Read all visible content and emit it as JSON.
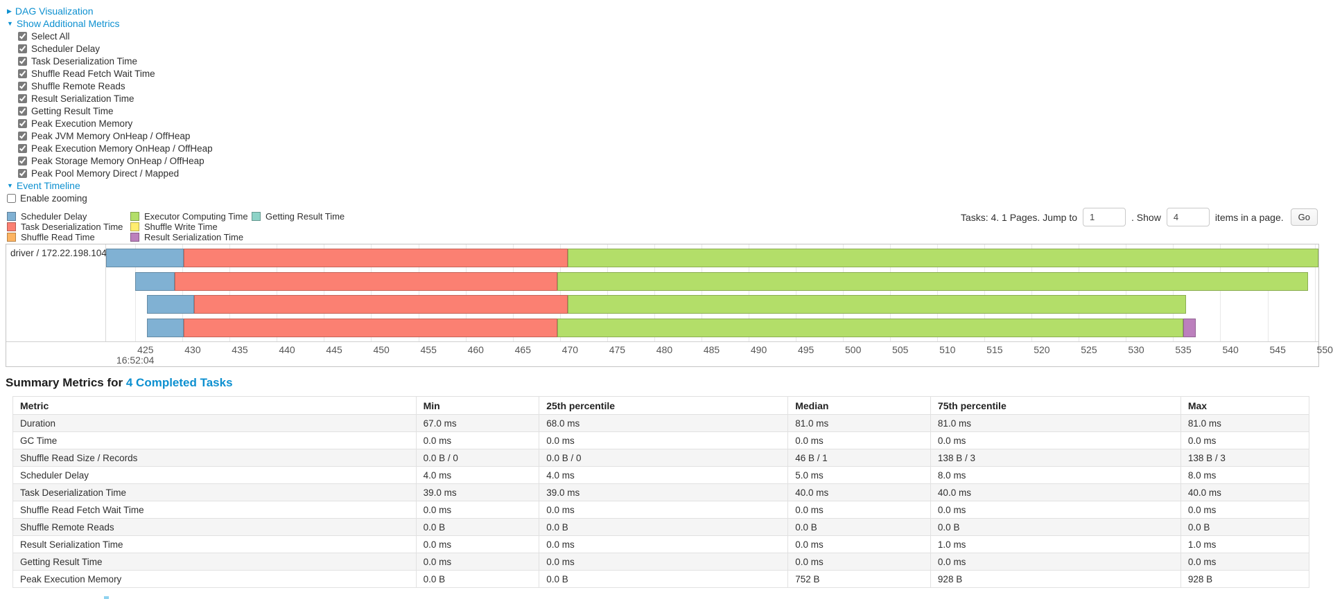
{
  "controls": {
    "dag_visualization": "DAG Visualization",
    "show_additional_metrics": "Show Additional Metrics",
    "metric_checkboxes": [
      "Select All",
      "Scheduler Delay",
      "Task Deserialization Time",
      "Shuffle Read Fetch Wait Time",
      "Shuffle Remote Reads",
      "Result Serialization Time",
      "Getting Result Time",
      "Peak Execution Memory",
      "Peak JVM Memory OnHeap / OffHeap",
      "Peak Execution Memory OnHeap / OffHeap",
      "Peak Storage Memory OnHeap / OffHeap",
      "Peak Pool Memory Direct / Mapped"
    ],
    "metric_checkboxes_checked": true,
    "event_timeline": "Event Timeline",
    "enable_zooming": "Enable zooming",
    "enable_zooming_checked": false
  },
  "legend": {
    "columns": [
      [
        {
          "label": "Scheduler Delay",
          "color": "#80B1D3"
        },
        {
          "label": "Task Deserialization Time",
          "color": "#FB8072"
        },
        {
          "label": "Shuffle Read Time",
          "color": "#FDB462"
        }
      ],
      [
        {
          "label": "Executor Computing Time",
          "color": "#B3DE69"
        },
        {
          "label": "Shuffle Write Time",
          "color": "#FFED6F"
        },
        {
          "label": "Result Serialization Time",
          "color": "#BC80BD"
        }
      ],
      [
        {
          "label": "Getting Result Time",
          "color": "#8DD3C7"
        }
      ]
    ]
  },
  "pagination": {
    "text_before": "Tasks: 4. 1 Pages. Jump to",
    "jump_value": "1",
    "text_mid": ". Show",
    "show_value": "4",
    "text_after": "items in a page.",
    "go_label": "Go"
  },
  "chart_data": {
    "type": "timeline",
    "group_label": "driver / 172.22.198.104",
    "axis": {
      "min": 421.9,
      "max": 550.4,
      "tick_start": 425,
      "tick_step": 5,
      "tick_end": 550,
      "first_tick_time_label": "16:52:04"
    },
    "tasks": [
      {
        "segments": [
          {
            "name": "scheduler-delay",
            "start": 421.9,
            "end": 430.1,
            "color": "#80B1D3"
          },
          {
            "name": "task-deserialization",
            "start": 430.1,
            "end": 470.8,
            "color": "#FB8072"
          },
          {
            "name": "executor-computing",
            "start": 470.8,
            "end": 550.4,
            "color": "#B3DE69"
          }
        ]
      },
      {
        "segments": [
          {
            "name": "scheduler-delay",
            "start": 425.0,
            "end": 429.2,
            "color": "#80B1D3"
          },
          {
            "name": "task-deserialization",
            "start": 429.2,
            "end": 469.7,
            "color": "#FB8072"
          },
          {
            "name": "executor-computing",
            "start": 469.7,
            "end": 549.3,
            "color": "#B3DE69"
          }
        ]
      },
      {
        "segments": [
          {
            "name": "scheduler-delay",
            "start": 426.2,
            "end": 431.2,
            "color": "#80B1D3"
          },
          {
            "name": "task-deserialization",
            "start": 431.2,
            "end": 470.8,
            "color": "#FB8072"
          },
          {
            "name": "executor-computing",
            "start": 470.8,
            "end": 536.4,
            "color": "#B3DE69"
          }
        ]
      },
      {
        "segments": [
          {
            "name": "scheduler-delay",
            "start": 426.2,
            "end": 430.1,
            "color": "#80B1D3"
          },
          {
            "name": "task-deserialization",
            "start": 430.1,
            "end": 469.7,
            "color": "#FB8072"
          },
          {
            "name": "executor-computing",
            "start": 469.7,
            "end": 536.1,
            "color": "#B3DE69"
          },
          {
            "name": "result-serialization",
            "start": 536.1,
            "end": 537.4,
            "color": "#BC80BD"
          }
        ]
      }
    ]
  },
  "summary": {
    "heading_prefix": "Summary Metrics for",
    "heading_link": "4 Completed Tasks",
    "table": {
      "headers": [
        "Metric",
        "Min",
        "25th percentile",
        "Median",
        "75th percentile",
        "Max"
      ],
      "rows": [
        [
          "Duration",
          "67.0 ms",
          "68.0 ms",
          "81.0 ms",
          "81.0 ms",
          "81.0 ms"
        ],
        [
          "GC Time",
          "0.0 ms",
          "0.0 ms",
          "0.0 ms",
          "0.0 ms",
          "0.0 ms"
        ],
        [
          "Shuffle Read Size / Records",
          "0.0 B / 0",
          "0.0 B / 0",
          "46 B / 1",
          "138 B / 3",
          "138 B / 3"
        ],
        [
          "Scheduler Delay",
          "4.0 ms",
          "4.0 ms",
          "5.0 ms",
          "8.0 ms",
          "8.0 ms"
        ],
        [
          "Task Deserialization Time",
          "39.0 ms",
          "39.0 ms",
          "40.0 ms",
          "40.0 ms",
          "40.0 ms"
        ],
        [
          "Shuffle Read Fetch Wait Time",
          "0.0 ms",
          "0.0 ms",
          "0.0 ms",
          "0.0 ms",
          "0.0 ms"
        ],
        [
          "Shuffle Remote Reads",
          "0.0 B",
          "0.0 B",
          "0.0 B",
          "0.0 B",
          "0.0 B"
        ],
        [
          "Result Serialization Time",
          "0.0 ms",
          "0.0 ms",
          "0.0 ms",
          "1.0 ms",
          "1.0 ms"
        ],
        [
          "Getting Result Time",
          "0.0 ms",
          "0.0 ms",
          "0.0 ms",
          "0.0 ms",
          "0.0 ms"
        ],
        [
          "Peak Execution Memory",
          "0.0 B",
          "0.0 B",
          "752 B",
          "928 B",
          "928 B"
        ]
      ]
    }
  }
}
